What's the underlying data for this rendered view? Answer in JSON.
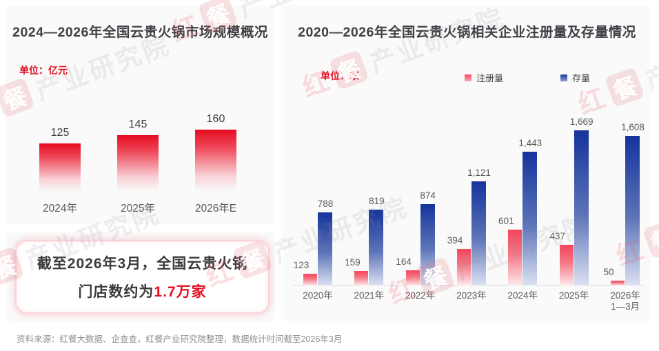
{
  "page": {
    "source_note": "资料来源：红餐大数据、企查查，红餐产业研究院整理，数据统计时间截至2026年3月"
  },
  "watermark": {
    "brand_prefix": "红",
    "brand_boxed": "餐",
    "suffix": "产业研究院"
  },
  "left_panel": {
    "title": "2024—2026年全国云贵火锅市场规模概况",
    "unit_label": "单位：亿元"
  },
  "info_box": {
    "line1": "截至2026年3月，全国云贵火锅",
    "line2_prefix": "门店数约为",
    "line2_highlight": "1.7万家"
  },
  "right_panel": {
    "title": "2020—2026年全国云贵火锅相关企业注册量及存量情况",
    "unit_label": "单位：家",
    "legend": [
      {
        "label": "注册量",
        "color_top": "#f4465a",
        "color_bottom": "#fbacb6"
      },
      {
        "label": "存量",
        "color_top": "#1b38a0",
        "color_bottom": "#8b9ed1"
      }
    ]
  },
  "colors": {
    "accent_red": "#e60c20",
    "bar_red_left_top": "#e60c20",
    "bar_red_right_top": "#f4455c",
    "bar_blue_top": "#15339c",
    "title_text": "#3f3f45",
    "axis_text": "#595959",
    "source_text": "#8f8f8f",
    "panel_bg": "#fafafa"
  },
  "chart_data": [
    {
      "type": "bar",
      "title": "2024—2026年全国云贵火锅市场规模概况",
      "unit": "亿元",
      "categories": [
        "2024年",
        "2025年",
        "2026年E"
      ],
      "values": [
        125,
        145,
        160
      ],
      "ylim": [
        0,
        160
      ],
      "grid": false,
      "value_labels": true
    },
    {
      "type": "bar",
      "title": "2020—2026年全国云贵火锅相关企业注册量及存量情况",
      "unit": "家",
      "categories": [
        "2020年",
        "2021年",
        "2022年",
        "2023年",
        "2024年",
        "2025年",
        "2026年\n1—3月"
      ],
      "series": [
        {
          "name": "注册量",
          "values": [
            123,
            159,
            164,
            394,
            601,
            437,
            50
          ]
        },
        {
          "name": "存量",
          "values": [
            788,
            819,
            874,
            1121,
            1443,
            1669,
            1608
          ]
        }
      ],
      "ylim": [
        0,
        1700
      ],
      "grid": false,
      "legend_position": "top",
      "value_labels": true
    }
  ],
  "key_fact": {
    "text": "截至2026年3月，全国云贵火锅门店数约为1.7万家",
    "value": "1.7万家"
  }
}
